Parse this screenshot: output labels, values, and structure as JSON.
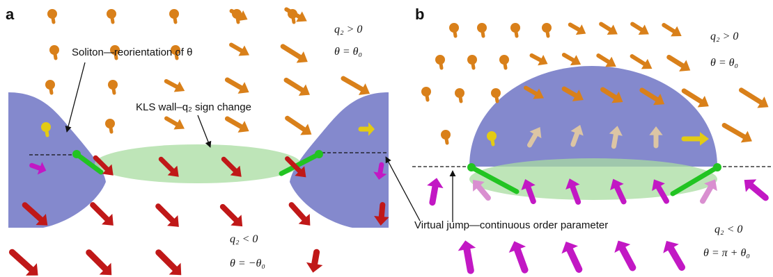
{
  "panels": {
    "a": {
      "label": "a",
      "annotations": {
        "q2_pos": "q₂ > 0",
        "theta_top": "θ = θ₀",
        "soliton": "Soliton—reorientation of θ",
        "kls_wall": "KLS wall–q₂ sign change",
        "q2_neg": "q₂ < 0",
        "theta_bottom": "θ = −θ₀"
      }
    },
    "b": {
      "label": "b",
      "annotations": {
        "q2_pos": "q₂ > 0",
        "theta_top": "θ = θ₀",
        "virtual_jump": "Virtual jump—continuous order parameter",
        "q2_neg": "q₂ < 0",
        "theta_bottom": "θ = π + θ₀"
      }
    }
  },
  "colors": {
    "orange": "#d9801a",
    "yellow": "#e3cb14",
    "red": "#c01818",
    "magenta": "#c218c4",
    "pale_pink": "#d98fd0",
    "beige": "#dcc5a4",
    "blue_region": "#6f74c4",
    "green_wall": "#a8dca0",
    "green_edge": "#22c422"
  }
}
